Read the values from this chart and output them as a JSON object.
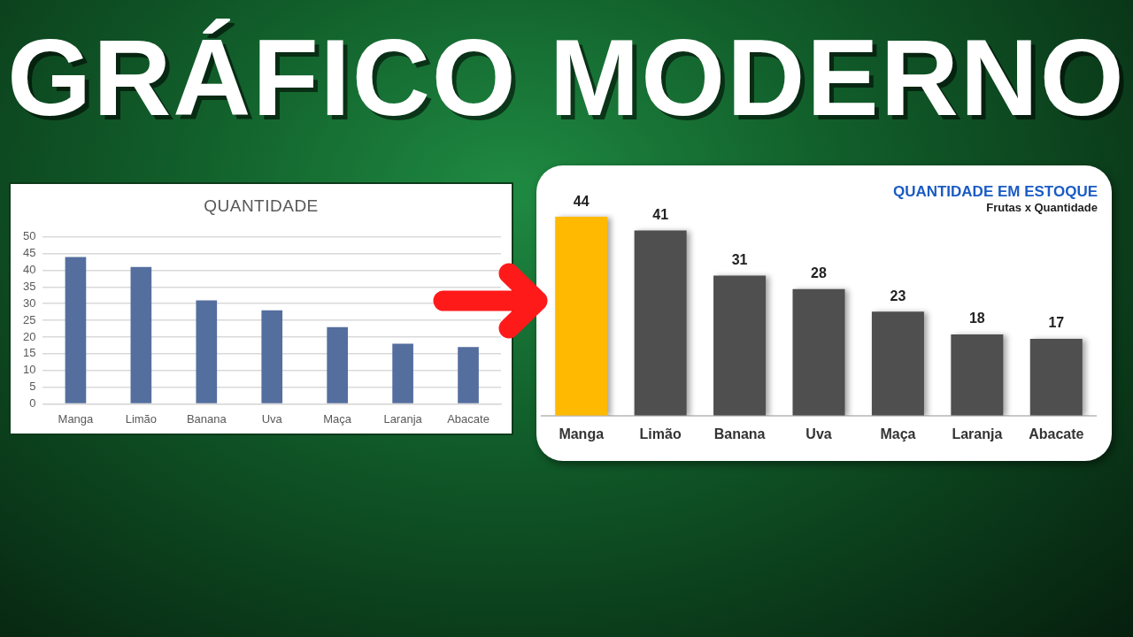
{
  "chart_data": [
    {
      "type": "other",
      "title": "GRÁFICO MODERNO"
    },
    {
      "type": "bar",
      "title": "QUANTIDADE",
      "categories": [
        "Manga",
        "Limão",
        "Banana",
        "Uva",
        "Maça",
        "Laranja",
        "Abacate"
      ],
      "values": [
        44,
        41,
        31,
        28,
        23,
        18,
        17
      ],
      "color": "#546e9e",
      "ylim": [
        0,
        50
      ],
      "yticks": [
        0,
        5,
        10,
        15,
        20,
        25,
        30,
        35,
        40,
        45,
        50
      ],
      "grid": "y"
    },
    {
      "type": "bar",
      "title": "QUANTIDADE EM ESTOQUE",
      "subtitle": "Frutas x Quantidade",
      "categories": [
        "Manga",
        "Limão",
        "Banana",
        "Uva",
        "Maça",
        "Laranja",
        "Abacate"
      ],
      "values": [
        44,
        41,
        31,
        28,
        23,
        18,
        17
      ],
      "colors": [
        "#ffb900",
        "#4f4f4f",
        "#4f4f4f",
        "#4f4f4f",
        "#4f4f4f",
        "#4f4f4f",
        "#4f4f4f"
      ],
      "data_labels": true,
      "tick_labels": "x"
    }
  ]
}
